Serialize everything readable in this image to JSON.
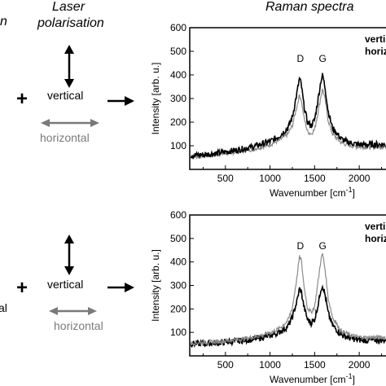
{
  "headers": {
    "col1_fragment": "n",
    "laser_line1": "Laser",
    "laser_line2": "polarisation",
    "raman": "Raman spectra"
  },
  "rows": [
    {
      "plus": "+",
      "left_fragment": "",
      "vertical": "vertical",
      "horizontal": "horizontal"
    },
    {
      "plus": "+",
      "left_fragment": "al",
      "vertical": "vertical",
      "horizontal": "horizontal"
    }
  ],
  "colors": {
    "vertical_series": "#000000",
    "horizontal_series": "#8a8a8a",
    "horizontal_arrow": "#7a7a7a"
  },
  "chart_data": [
    {
      "type": "line",
      "xlabel": "Wavenumber [cm",
      "xlabel_superscript": "-1",
      "xlabel_close": "]",
      "ylabel": "Intensity [arb. u.]",
      "xlim": [
        100,
        2300
      ],
      "ylim": [
        0,
        600
      ],
      "xticks": [
        500,
        1000,
        1500,
        2000
      ],
      "yticks": [
        100,
        200,
        300,
        400,
        500,
        600
      ],
      "legend": [
        "verti",
        "horizon"
      ],
      "peak_labels": [
        {
          "text": "D",
          "x": 1340
        },
        {
          "text": "G",
          "x": 1590
        }
      ],
      "series": [
        {
          "name": "verti",
          "x": [
            100,
            200,
            400,
            600,
            800,
            1000,
            1100,
            1200,
            1250,
            1300,
            1330,
            1350,
            1380,
            1420,
            1460,
            1500,
            1540,
            1570,
            1590,
            1620,
            1650,
            1700,
            1800,
            1900,
            2000,
            2100,
            2200,
            2300
          ],
          "y": [
            60,
            60,
            68,
            80,
            95,
            118,
            140,
            175,
            220,
            320,
            385,
            360,
            270,
            200,
            185,
            210,
            300,
            375,
            400,
            340,
            250,
            175,
            128,
            112,
            105,
            104,
            106,
            105
          ]
        },
        {
          "name": "horizon",
          "x": [
            100,
            200,
            400,
            600,
            800,
            1000,
            1100,
            1200,
            1250,
            1300,
            1330,
            1350,
            1380,
            1420,
            1460,
            1500,
            1540,
            1570,
            1590,
            1620,
            1650,
            1700,
            1800,
            1900,
            2000,
            2100,
            2200,
            2300
          ],
          "y": [
            55,
            56,
            62,
            72,
            85,
            105,
            122,
            150,
            185,
            265,
            315,
            295,
            220,
            160,
            150,
            170,
            245,
            310,
            340,
            290,
            210,
            150,
            112,
            100,
            95,
            94,
            95,
            95
          ]
        }
      ]
    },
    {
      "type": "line",
      "xlabel": "Wavenumber [cm",
      "xlabel_superscript": "-1",
      "xlabel_close": "]",
      "ylabel": "Intensity [arb. u.]",
      "xlim": [
        100,
        2300
      ],
      "ylim": [
        0,
        600
      ],
      "xticks": [
        500,
        1000,
        1500,
        2000
      ],
      "yticks": [
        100,
        200,
        300,
        400,
        500,
        600
      ],
      "legend": [
        "verti",
        "horizon"
      ],
      "peak_labels": [
        {
          "text": "D",
          "x": 1340
        },
        {
          "text": "G",
          "x": 1590
        }
      ],
      "series": [
        {
          "name": "verti",
          "x": [
            100,
            200,
            400,
            600,
            800,
            1000,
            1100,
            1200,
            1250,
            1300,
            1330,
            1350,
            1380,
            1420,
            1460,
            1500,
            1540,
            1570,
            1590,
            1620,
            1650,
            1700,
            1800,
            1900,
            2000,
            2100,
            2200,
            2300
          ],
          "y": [
            52,
            52,
            55,
            62,
            70,
            86,
            100,
            125,
            165,
            230,
            285,
            275,
            210,
            155,
            140,
            155,
            220,
            285,
            300,
            255,
            185,
            130,
            90,
            75,
            68,
            66,
            68,
            67
          ]
        },
        {
          "name": "horizon",
          "x": [
            100,
            200,
            400,
            600,
            800,
            1000,
            1100,
            1200,
            1250,
            1300,
            1330,
            1350,
            1380,
            1420,
            1460,
            1500,
            1540,
            1570,
            1590,
            1620,
            1650,
            1700,
            1800,
            1900,
            2000,
            2100,
            2200,
            2300
          ],
          "y": [
            55,
            56,
            60,
            68,
            78,
            98,
            115,
            150,
            205,
            330,
            420,
            410,
            300,
            205,
            185,
            210,
            320,
            410,
            435,
            360,
            250,
            165,
            105,
            88,
            80,
            78,
            79,
            78
          ]
        }
      ]
    }
  ]
}
